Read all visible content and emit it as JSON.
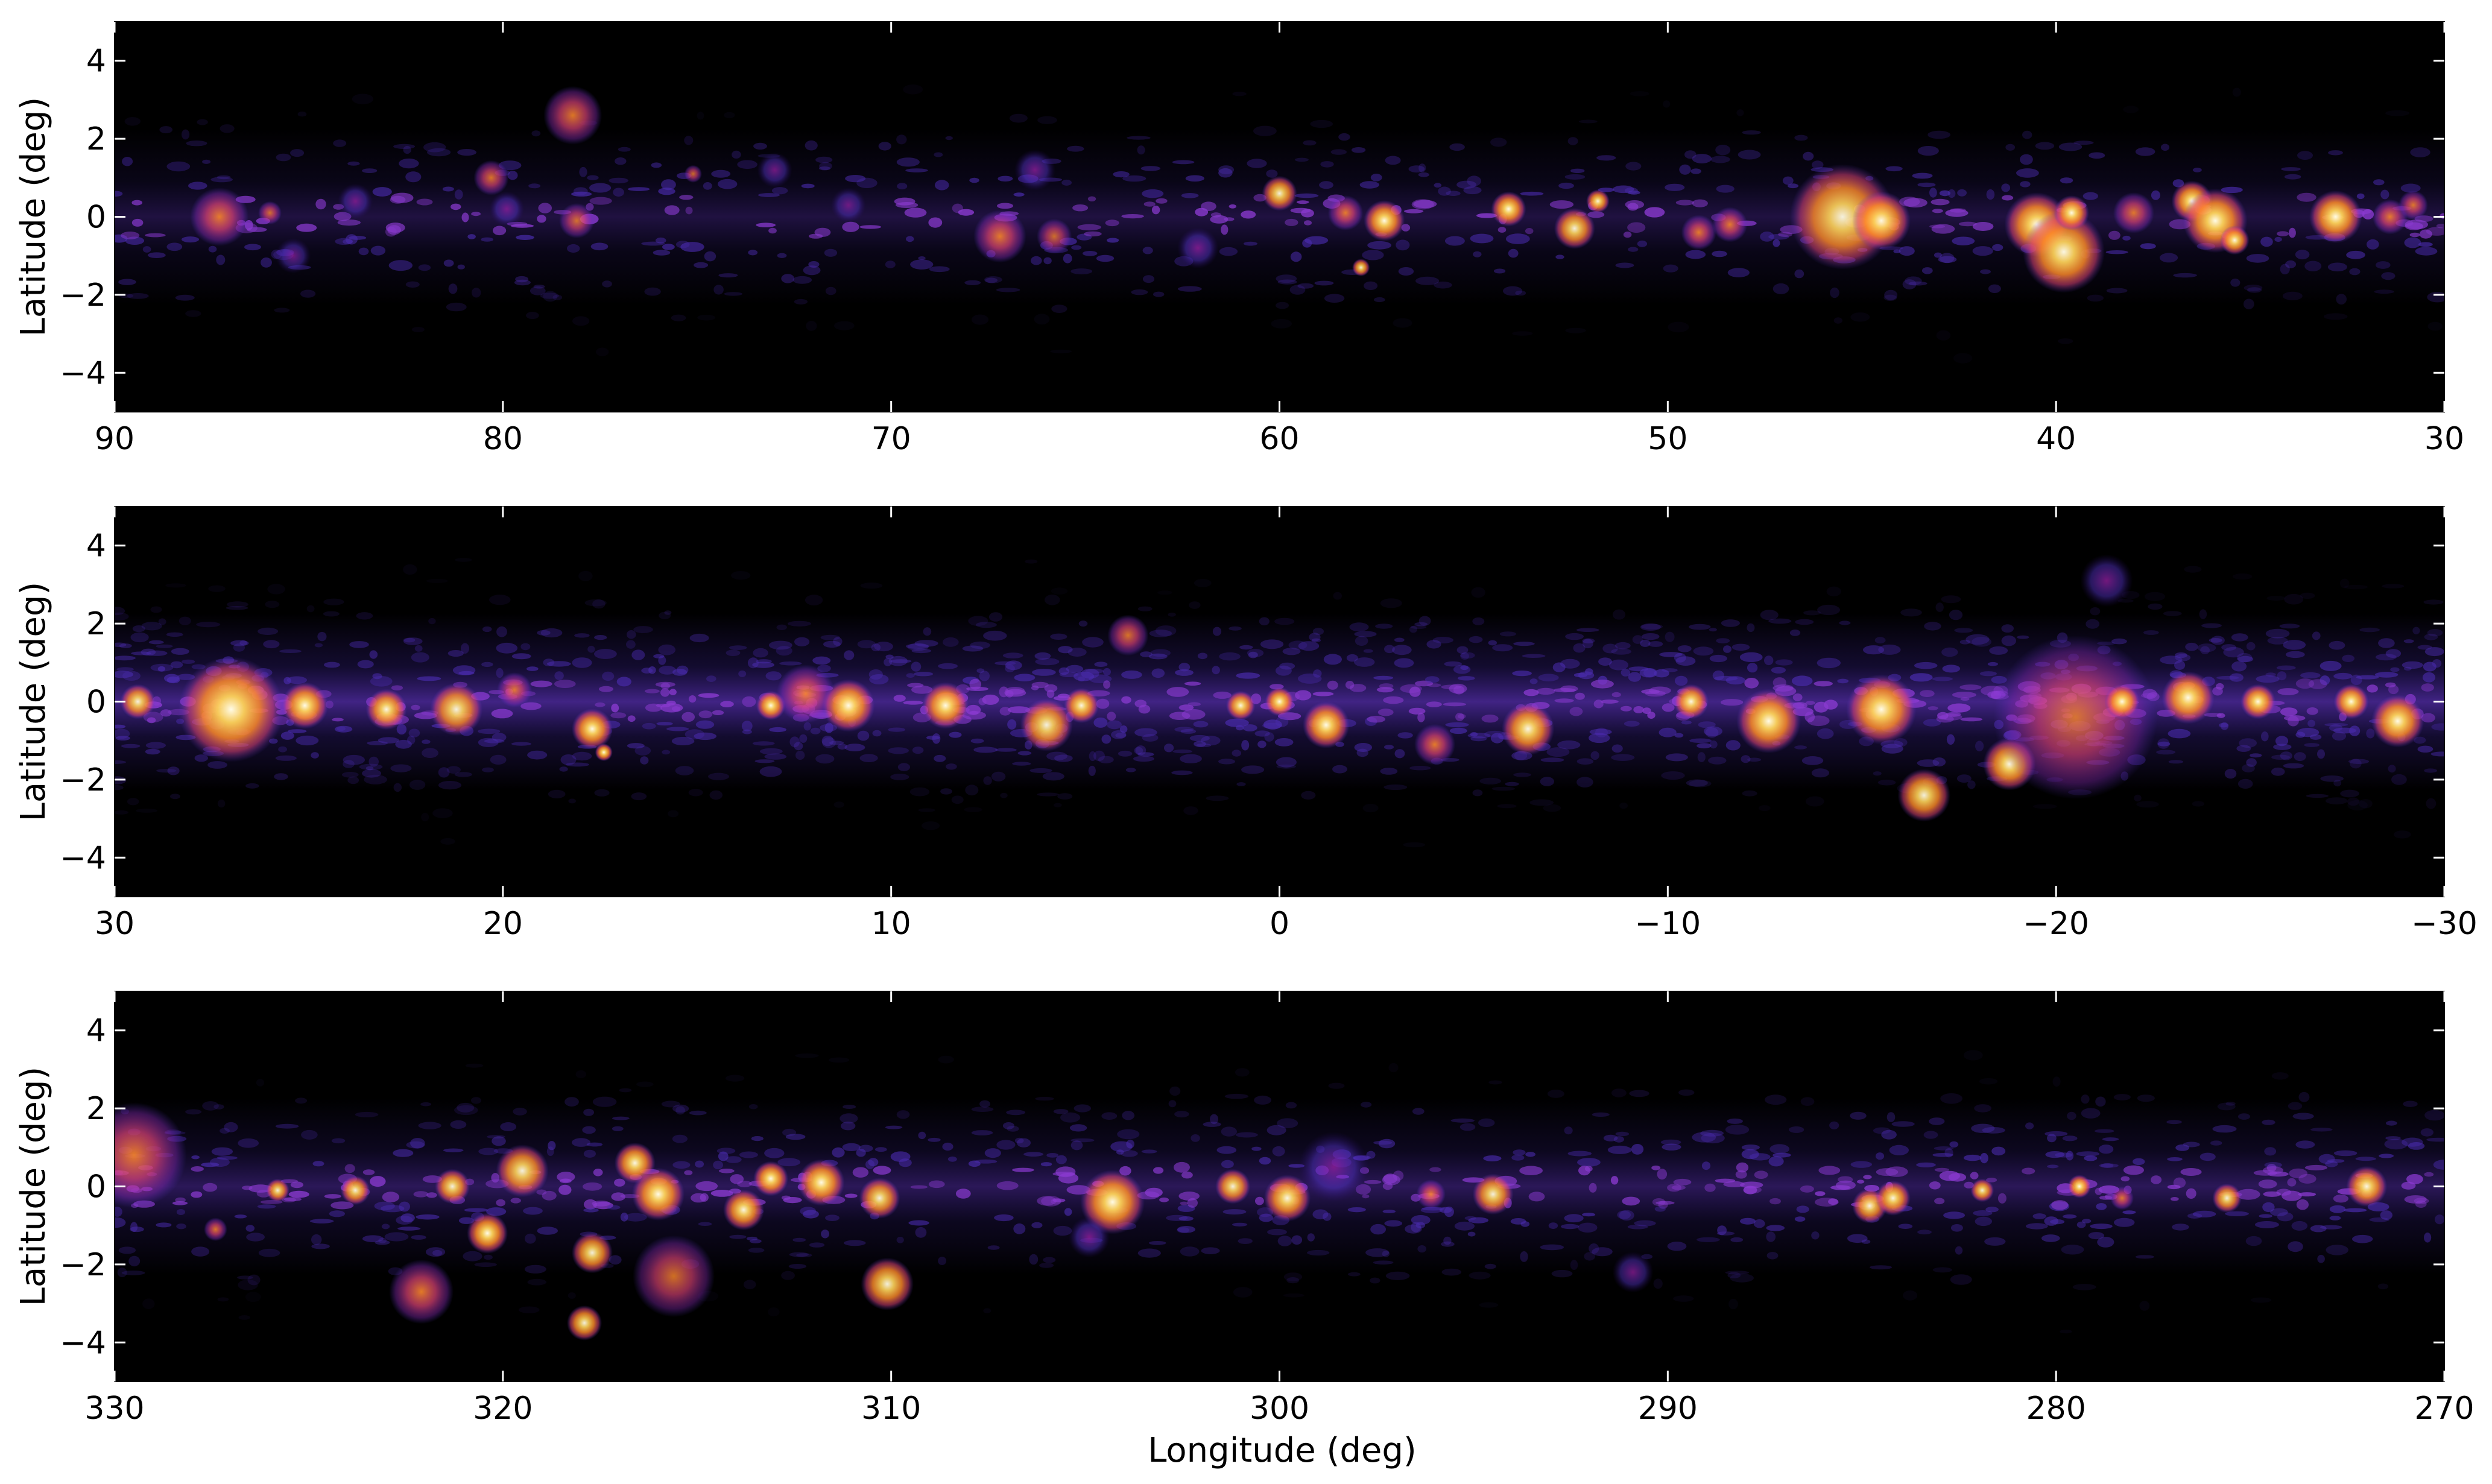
{
  "chart_data": [
    {
      "type": "heatmap",
      "panel": "top",
      "xlabel": "",
      "ylabel": "Latitude (deg)",
      "xlim": [
        90,
        30
      ],
      "ylim": [
        -5,
        5
      ],
      "x_ticks": [
        90,
        80,
        70,
        60,
        50,
        40,
        30
      ],
      "x_tick_labels": [
        "90",
        "80",
        "70",
        "60",
        "50",
        "40",
        "30"
      ],
      "y_ticks": [
        4,
        2,
        0,
        -2,
        -4
      ],
      "y_tick_labels": [
        "4",
        "2",
        "0",
        "−2",
        "−4"
      ],
      "diffuse_level": 0.22,
      "sources": [
        {
          "lon": 87.3,
          "lat": 0.0,
          "r": 0.5,
          "v": 0.75
        },
        {
          "lon": 86.0,
          "lat": 0.1,
          "r": 0.2,
          "v": 0.6
        },
        {
          "lon": 85.4,
          "lat": -1.0,
          "r": 0.3,
          "v": 0.35
        },
        {
          "lon": 83.8,
          "lat": 0.4,
          "r": 0.3,
          "v": 0.4
        },
        {
          "lon": 80.3,
          "lat": 1.0,
          "r": 0.3,
          "v": 0.65
        },
        {
          "lon": 79.9,
          "lat": 0.2,
          "r": 0.3,
          "v": 0.4
        },
        {
          "lon": 78.2,
          "lat": 2.6,
          "r": 0.5,
          "v": 0.7
        },
        {
          "lon": 78.1,
          "lat": -0.1,
          "r": 0.3,
          "v": 0.6
        },
        {
          "lon": 75.1,
          "lat": 1.1,
          "r": 0.15,
          "v": 0.55
        },
        {
          "lon": 73.0,
          "lat": 1.2,
          "r": 0.3,
          "v": 0.4
        },
        {
          "lon": 71.1,
          "lat": 0.3,
          "r": 0.3,
          "v": 0.3
        },
        {
          "lon": 67.2,
          "lat": -0.5,
          "r": 0.45,
          "v": 0.75
        },
        {
          "lon": 66.3,
          "lat": 1.2,
          "r": 0.35,
          "v": 0.45
        },
        {
          "lon": 65.8,
          "lat": -0.5,
          "r": 0.3,
          "v": 0.55
        },
        {
          "lon": 62.1,
          "lat": -0.8,
          "r": 0.35,
          "v": 0.5
        },
        {
          "lon": 60.0,
          "lat": 0.6,
          "r": 0.3,
          "v": 0.8
        },
        {
          "lon": 58.3,
          "lat": 0.1,
          "r": 0.3,
          "v": 0.75
        },
        {
          "lon": 57.3,
          "lat": -0.1,
          "r": 0.35,
          "v": 0.9
        },
        {
          "lon": 57.9,
          "lat": -1.3,
          "r": 0.15,
          "v": 0.8
        },
        {
          "lon": 54.1,
          "lat": 0.2,
          "r": 0.3,
          "v": 0.9
        },
        {
          "lon": 52.4,
          "lat": -0.3,
          "r": 0.35,
          "v": 0.8
        },
        {
          "lon": 51.8,
          "lat": 0.4,
          "r": 0.2,
          "v": 0.85
        },
        {
          "lon": 49.2,
          "lat": -0.4,
          "r": 0.3,
          "v": 0.75
        },
        {
          "lon": 48.4,
          "lat": -0.2,
          "r": 0.3,
          "v": 0.75
        },
        {
          "lon": 45.5,
          "lat": 0.0,
          "r": 0.9,
          "v": 0.8
        },
        {
          "lon": 44.5,
          "lat": -0.1,
          "r": 0.5,
          "v": 0.85
        },
        {
          "lon": 40.5,
          "lat": -0.2,
          "r": 0.55,
          "v": 0.9
        },
        {
          "lon": 39.8,
          "lat": -0.9,
          "r": 0.7,
          "v": 0.85
        },
        {
          "lon": 39.6,
          "lat": 0.1,
          "r": 0.3,
          "v": 1.0
        },
        {
          "lon": 38.0,
          "lat": 0.1,
          "r": 0.35,
          "v": 0.7
        },
        {
          "lon": 36.5,
          "lat": 0.4,
          "r": 0.35,
          "v": 0.95
        },
        {
          "lon": 35.9,
          "lat": -0.1,
          "r": 0.55,
          "v": 1.0
        },
        {
          "lon": 35.4,
          "lat": -0.6,
          "r": 0.25,
          "v": 0.85
        },
        {
          "lon": 32.8,
          "lat": 0.0,
          "r": 0.45,
          "v": 1.0
        },
        {
          "lon": 31.4,
          "lat": 0.0,
          "r": 0.3,
          "v": 0.75
        },
        {
          "lon": 30.8,
          "lat": 0.3,
          "r": 0.25,
          "v": 0.7
        }
      ]
    },
    {
      "type": "heatmap",
      "panel": "middle",
      "xlabel": "",
      "ylabel": "Latitude (deg)",
      "xlim": [
        30,
        -30
      ],
      "ylim": [
        -5,
        5
      ],
      "x_ticks": [
        30,
        20,
        10,
        0,
        -10,
        -20,
        -30
      ],
      "x_tick_labels": [
        "30",
        "20",
        "10",
        "0",
        "−10",
        "−20",
        "−30"
      ],
      "y_ticks": [
        4,
        2,
        0,
        -2,
        -4
      ],
      "y_tick_labels": [
        "4",
        "2",
        "0",
        "−2",
        "−4"
      ],
      "diffuse_level": 0.45,
      "sources": [
        {
          "lon": 29.4,
          "lat": 0.0,
          "r": 0.3,
          "v": 0.8
        },
        {
          "lon": 27.0,
          "lat": -0.2,
          "r": 0.9,
          "v": 0.95
        },
        {
          "lon": 25.1,
          "lat": -0.1,
          "r": 0.4,
          "v": 0.9
        },
        {
          "lon": 23.0,
          "lat": -0.2,
          "r": 0.35,
          "v": 0.85
        },
        {
          "lon": 21.2,
          "lat": -0.2,
          "r": 0.45,
          "v": 0.8
        },
        {
          "lon": 19.7,
          "lat": 0.3,
          "r": 0.3,
          "v": 0.7
        },
        {
          "lon": 17.7,
          "lat": -0.7,
          "r": 0.35,
          "v": 0.9
        },
        {
          "lon": 17.4,
          "lat": -1.3,
          "r": 0.15,
          "v": 1.0
        },
        {
          "lon": 13.1,
          "lat": -0.1,
          "r": 0.25,
          "v": 0.9
        },
        {
          "lon": 12.2,
          "lat": 0.2,
          "r": 0.5,
          "v": 0.75
        },
        {
          "lon": 11.1,
          "lat": -0.1,
          "r": 0.45,
          "v": 0.9
        },
        {
          "lon": 8.6,
          "lat": -0.1,
          "r": 0.4,
          "v": 0.9
        },
        {
          "lon": 6.0,
          "lat": -0.6,
          "r": 0.45,
          "v": 0.8
        },
        {
          "lon": 5.1,
          "lat": -0.1,
          "r": 0.3,
          "v": 0.85
        },
        {
          "lon": 3.9,
          "lat": 1.7,
          "r": 0.35,
          "v": 0.65
        },
        {
          "lon": 1.0,
          "lat": -0.1,
          "r": 0.25,
          "v": 0.85
        },
        {
          "lon": 0.0,
          "lat": 0.0,
          "r": 0.25,
          "v": 1.0
        },
        {
          "lon": -1.2,
          "lat": -0.6,
          "r": 0.4,
          "v": 0.95
        },
        {
          "lon": -4.0,
          "lat": -1.1,
          "r": 0.35,
          "v": 0.75
        },
        {
          "lon": -6.4,
          "lat": -0.7,
          "r": 0.45,
          "v": 0.85
        },
        {
          "lon": -10.6,
          "lat": 0.0,
          "r": 0.3,
          "v": 0.85
        },
        {
          "lon": -12.6,
          "lat": -0.5,
          "r": 0.55,
          "v": 1.0
        },
        {
          "lon": -15.5,
          "lat": -0.2,
          "r": 0.6,
          "v": 0.95
        },
        {
          "lon": -16.6,
          "lat": -2.4,
          "r": 0.45,
          "v": 0.8
        },
        {
          "lon": -18.8,
          "lat": -1.6,
          "r": 0.45,
          "v": 0.85
        },
        {
          "lon": -20.5,
          "lat": -0.4,
          "r": 1.4,
          "v": 0.6
        },
        {
          "lon": -21.3,
          "lat": 3.1,
          "r": 0.45,
          "v": 0.45
        },
        {
          "lon": -21.7,
          "lat": 0.0,
          "r": 0.3,
          "v": 1.0
        },
        {
          "lon": -23.4,
          "lat": 0.1,
          "r": 0.45,
          "v": 0.95
        },
        {
          "lon": -25.2,
          "lat": 0.0,
          "r": 0.3,
          "v": 0.9
        },
        {
          "lon": -27.6,
          "lat": 0.0,
          "r": 0.3,
          "v": 0.9
        },
        {
          "lon": -28.8,
          "lat": -0.5,
          "r": 0.45,
          "v": 0.95
        }
      ]
    },
    {
      "type": "heatmap",
      "panel": "bottom",
      "xlabel": "Longitude (deg)",
      "ylabel": "Latitude (deg)",
      "xlim": [
        330,
        270
      ],
      "ylim": [
        -5,
        5
      ],
      "x_ticks": [
        330,
        320,
        310,
        300,
        290,
        280,
        270
      ],
      "x_tick_labels": [
        "330",
        "320",
        "310",
        "300",
        "290",
        "280",
        "270"
      ],
      "y_ticks": [
        4,
        2,
        0,
        -2,
        -4
      ],
      "y_tick_labels": [
        "4",
        "2",
        "0",
        "−2",
        "−4"
      ],
      "diffuse_level": 0.3,
      "sources": [
        {
          "lon": 329.5,
          "lat": 0.8,
          "r": 0.9,
          "v": 0.75
        },
        {
          "lon": 327.4,
          "lat": -1.1,
          "r": 0.2,
          "v": 0.7
        },
        {
          "lon": 325.8,
          "lat": -0.1,
          "r": 0.2,
          "v": 0.8
        },
        {
          "lon": 323.8,
          "lat": -0.1,
          "r": 0.25,
          "v": 0.8
        },
        {
          "lon": 322.1,
          "lat": -2.7,
          "r": 0.55,
          "v": 0.75
        },
        {
          "lon": 321.3,
          "lat": 0.0,
          "r": 0.3,
          "v": 0.8
        },
        {
          "lon": 320.4,
          "lat": -1.2,
          "r": 0.35,
          "v": 0.9
        },
        {
          "lon": 319.5,
          "lat": 0.4,
          "r": 0.45,
          "v": 0.8
        },
        {
          "lon": 317.7,
          "lat": -1.7,
          "r": 0.35,
          "v": 0.8
        },
        {
          "lon": 317.9,
          "lat": -3.5,
          "r": 0.3,
          "v": 0.8
        },
        {
          "lon": 316.6,
          "lat": 0.6,
          "r": 0.35,
          "v": 0.85
        },
        {
          "lon": 316.0,
          "lat": -0.2,
          "r": 0.45,
          "v": 0.95
        },
        {
          "lon": 315.6,
          "lat": -2.3,
          "r": 0.7,
          "v": 0.6
        },
        {
          "lon": 313.8,
          "lat": -0.6,
          "r": 0.35,
          "v": 0.85
        },
        {
          "lon": 313.1,
          "lat": 0.2,
          "r": 0.3,
          "v": 1.0
        },
        {
          "lon": 311.8,
          "lat": 0.1,
          "r": 0.4,
          "v": 0.9
        },
        {
          "lon": 310.3,
          "lat": -0.3,
          "r": 0.35,
          "v": 0.8
        },
        {
          "lon": 310.1,
          "lat": -2.5,
          "r": 0.45,
          "v": 0.8
        },
        {
          "lon": 304.3,
          "lat": -0.4,
          "r": 0.55,
          "v": 0.95
        },
        {
          "lon": 304.9,
          "lat": -1.3,
          "r": 0.35,
          "v": 0.5
        },
        {
          "lon": 301.2,
          "lat": 0.0,
          "r": 0.3,
          "v": 0.8
        },
        {
          "lon": 299.8,
          "lat": -0.3,
          "r": 0.4,
          "v": 0.85
        },
        {
          "lon": 298.6,
          "lat": 0.5,
          "r": 0.6,
          "v": 0.45
        },
        {
          "lon": 296.1,
          "lat": -0.2,
          "r": 0.25,
          "v": 0.75
        },
        {
          "lon": 294.5,
          "lat": -0.2,
          "r": 0.35,
          "v": 0.8
        },
        {
          "lon": 290.9,
          "lat": -2.2,
          "r": 0.35,
          "v": 0.4
        },
        {
          "lon": 284.8,
          "lat": -0.5,
          "r": 0.3,
          "v": 0.8
        },
        {
          "lon": 284.2,
          "lat": -0.3,
          "r": 0.3,
          "v": 0.85
        },
        {
          "lon": 281.9,
          "lat": -0.1,
          "r": 0.2,
          "v": 0.8
        },
        {
          "lon": 279.4,
          "lat": 0.0,
          "r": 0.2,
          "v": 0.9
        },
        {
          "lon": 278.3,
          "lat": -0.3,
          "r": 0.2,
          "v": 0.7
        },
        {
          "lon": 275.6,
          "lat": -0.3,
          "r": 0.25,
          "v": 0.8
        },
        {
          "lon": 272.0,
          "lat": 0.0,
          "r": 0.35,
          "v": 0.85
        }
      ]
    }
  ],
  "colors": {
    "background": "#000000",
    "diffuse": "#5533cc",
    "colormap": [
      "#000000",
      "#2a0a6e",
      "#5533cc",
      "#a322b0",
      "#e0447a",
      "#ff8a2a",
      "#ffd35a",
      "#fffbe6"
    ]
  }
}
